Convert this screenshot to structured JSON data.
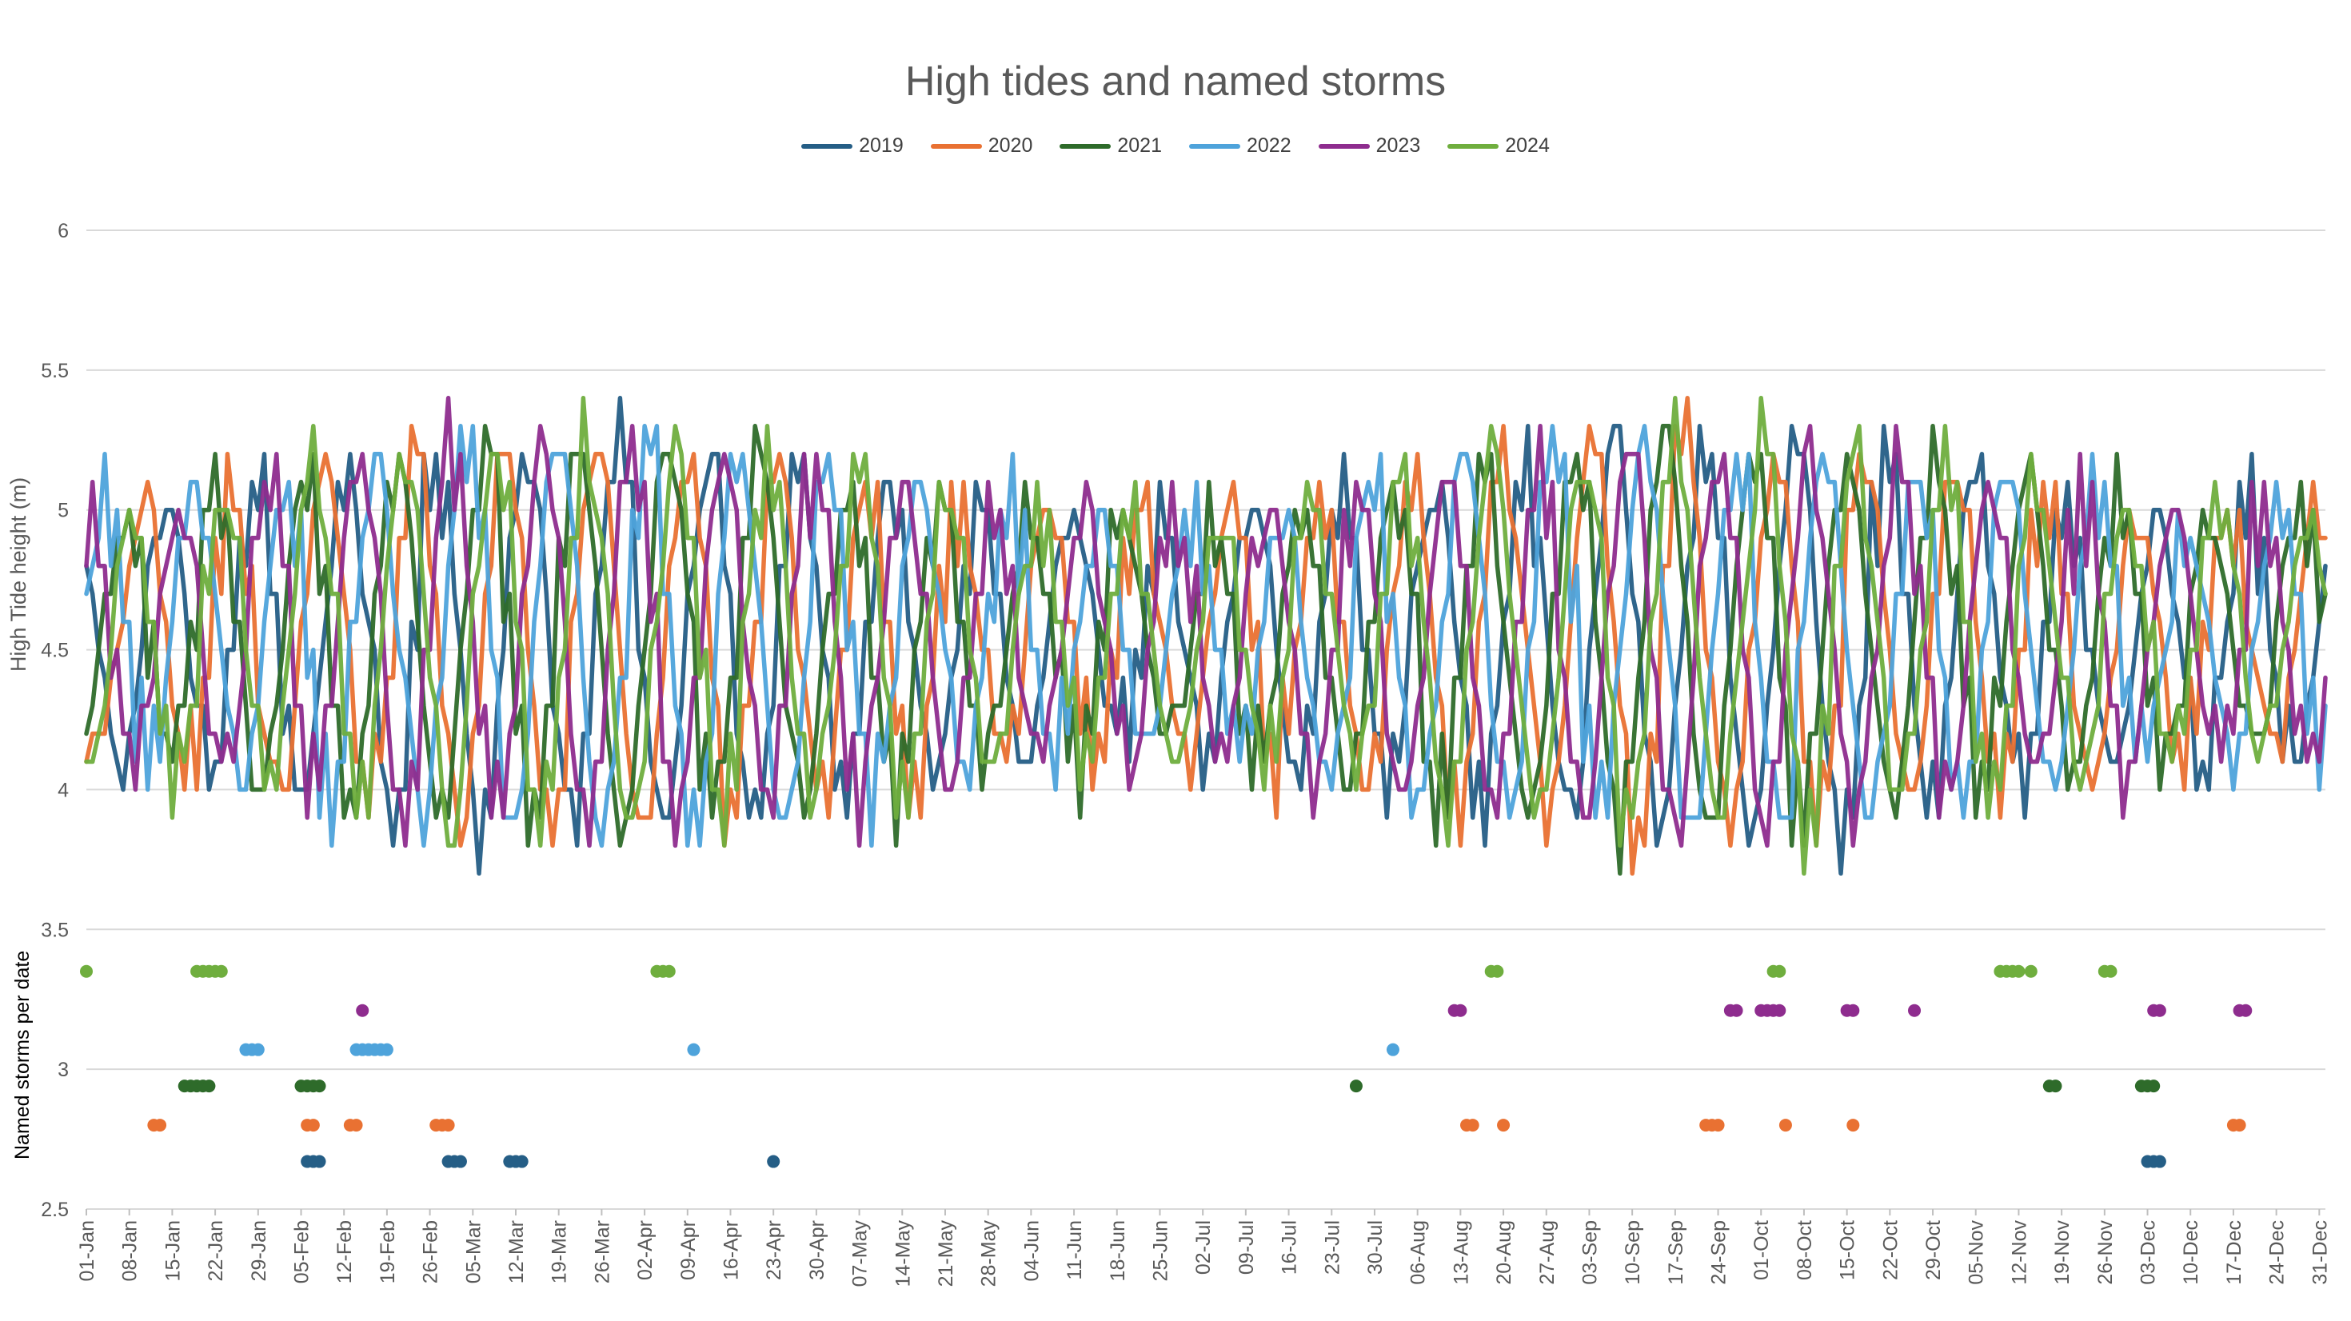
{
  "chart_data": {
    "type": "line",
    "title": "High tides and named storms",
    "ylabel": "High Tide height (m)",
    "ylabel_secondary": "Named storms per date",
    "ylim": [
      2.5,
      6
    ],
    "yticks": [
      "2.5",
      "3",
      "3.5",
      "4",
      "4.5",
      "5",
      "5.5",
      "6"
    ],
    "x_range": [
      1,
      366
    ],
    "x_tick_labels": [
      "01-Jan",
      "08-Jan",
      "15-Jan",
      "22-Jan",
      "29-Jan",
      "05-Feb",
      "12-Feb",
      "19-Feb",
      "26-Feb",
      "05-Mar",
      "12-Mar",
      "19-Mar",
      "26-Mar",
      "02-Apr",
      "09-Apr",
      "16-Apr",
      "23-Apr",
      "30-Apr",
      "07-May",
      "14-May",
      "21-May",
      "28-May",
      "04-Jun",
      "11-Jun",
      "18-Jun",
      "25-Jun",
      "02-Jul",
      "09-Jul",
      "16-Jul",
      "23-Jul",
      "30-Jul",
      "06-Aug",
      "13-Aug",
      "20-Aug",
      "27-Aug",
      "03-Sep",
      "10-Sep",
      "17-Sep",
      "24-Sep",
      "01-Oct",
      "08-Oct",
      "15-Oct",
      "22-Oct",
      "29-Oct",
      "05-Nov",
      "12-Nov",
      "19-Nov",
      "26-Nov",
      "03-Dec",
      "10-Dec",
      "17-Dec",
      "24-Dec",
      "31-Dec"
    ],
    "legend_position": "top",
    "grid": true,
    "series": [
      {
        "name": "2019",
        "color": "#255E86",
        "phase": 0.4
      },
      {
        "name": "2020",
        "color": "#E97132",
        "phase": 1.9
      },
      {
        "name": "2021",
        "color": "#2E6B2A",
        "phase": 3.2
      },
      {
        "name": "2022",
        "color": "#4EA3DB",
        "phase": 4.6
      },
      {
        "name": "2023",
        "color": "#8E2C8E",
        "phase": 5.7
      },
      {
        "name": "2024",
        "color": "#6FAE3E",
        "phase": 2.6
      }
    ],
    "storms": [
      {
        "series": "2019",
        "y": 2.67,
        "days": [
          37,
          38,
          39,
          60,
          61,
          62,
          70,
          71,
          72,
          113,
          337,
          338,
          339
        ]
      },
      {
        "series": "2020",
        "y": 2.8,
        "days": [
          12,
          13,
          37,
          38,
          44,
          45,
          58,
          59,
          60,
          226,
          227,
          232,
          265,
          266,
          267,
          278,
          289,
          351,
          352
        ]
      },
      {
        "series": "2021",
        "y": 2.94,
        "days": [
          17,
          18,
          19,
          20,
          21,
          36,
          37,
          38,
          39,
          208,
          321,
          322,
          336,
          337,
          338
        ]
      },
      {
        "series": "2022",
        "y": 3.07,
        "days": [
          27,
          28,
          29,
          45,
          46,
          47,
          48,
          49,
          50,
          100,
          214
        ]
      },
      {
        "series": "2023",
        "y": 3.21,
        "days": [
          46,
          224,
          225,
          269,
          270,
          274,
          275,
          276,
          277,
          288,
          289,
          299,
          338,
          339,
          352,
          353
        ]
      },
      {
        "series": "2024",
        "y": 3.35,
        "days": [
          1,
          19,
          20,
          21,
          22,
          23,
          94,
          95,
          96,
          230,
          231,
          276,
          277,
          313,
          314,
          315,
          316,
          318,
          330,
          331
        ]
      }
    ]
  }
}
